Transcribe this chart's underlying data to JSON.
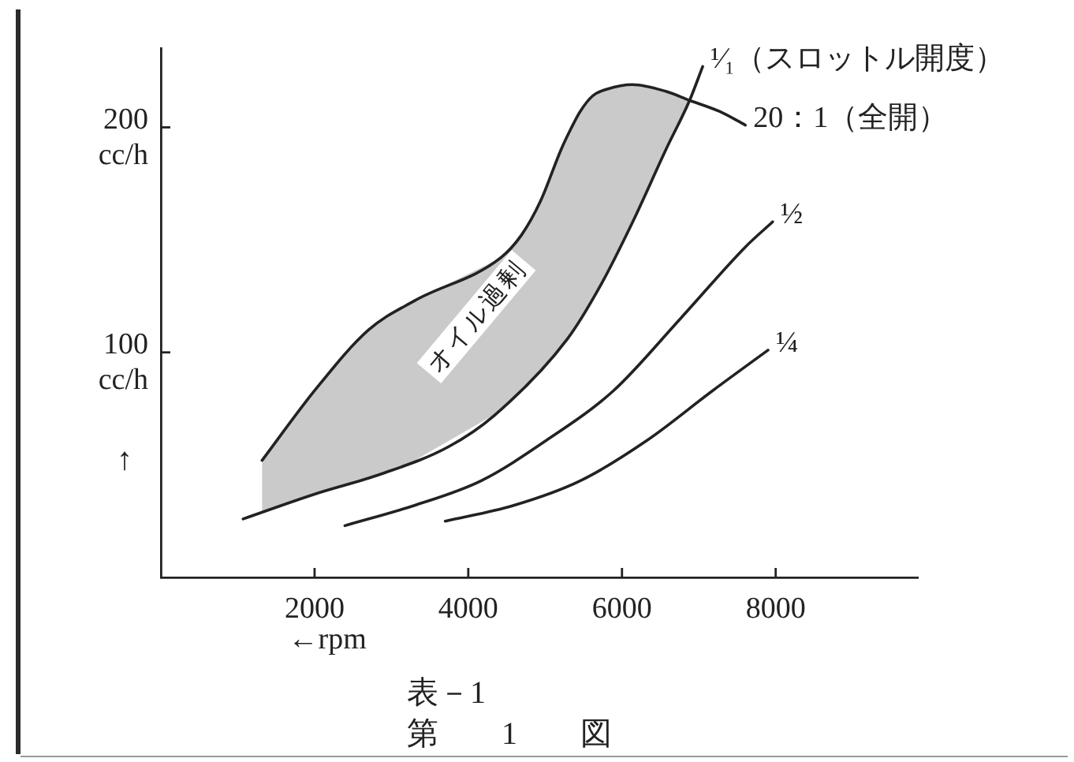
{
  "chart_data": {
    "type": "line",
    "xlabel": "←rpm",
    "ylabel": "↑",
    "xlim": [
      0,
      9850
    ],
    "xticks": [
      2000,
      4000,
      6000,
      8000
    ],
    "ylim": [
      0,
      235
    ],
    "yticks": [
      {
        "value": 100,
        "label": "100\ncc/h"
      },
      {
        "value": 200,
        "label": "200\ncc/h"
      }
    ],
    "grid": false,
    "legend": false,
    "marker": "none",
    "line_style": "solid",
    "annotations": [
      "オイル過剰",
      "表－1",
      "第　　1　　図"
    ],
    "series": [
      {
        "name": "¹⁄₁（スロットル開度）",
        "color": "#222222",
        "x": [
          1070,
          2000,
          2870,
          3740,
          4340,
          5290,
          5725,
          6140,
          6570,
          6880,
          7050
        ],
        "values": [
          26,
          37,
          46,
          58,
          72,
          106,
          130,
          158,
          190,
          212,
          227
        ]
      },
      {
        "name": "20：1（全開）",
        "color": "#222222",
        "x": [
          1317,
          2000,
          2703,
          3303,
          4420,
          4689,
          4937,
          5206,
          5330,
          5455,
          5619,
          5807,
          6137,
          6571,
          6880,
          7274,
          7605
        ],
        "values": [
          52,
          83,
          110,
          123,
          142,
          152,
          167,
          190,
          199,
          207,
          214,
          217,
          219,
          216,
          212,
          207,
          201
        ],
        "lower": [
          29,
          37,
          44,
          52,
          74,
          82,
          92,
          102,
          108,
          115,
          124,
          135,
          158,
          190,
          212,
          null,
          null
        ],
        "upper": [
          52,
          83,
          110,
          123,
          142,
          152,
          167,
          190,
          199,
          207,
          214,
          217,
          219,
          216,
          212,
          null,
          null
        ]
      },
      {
        "name": "½",
        "color": "#222222",
        "x": [
          2395,
          3300,
          4170,
          5020,
          5890,
          6760,
          7610,
          7960
        ],
        "values": [
          23,
          32,
          43,
          61,
          83,
          115,
          147,
          158
        ]
      },
      {
        "name": "¼",
        "color": "#222222",
        "x": [
          3700,
          4590,
          5460,
          6330,
          7180,
          7900
        ],
        "values": [
          25,
          32,
          43,
          61,
          83,
          101
        ]
      }
    ]
  }
}
